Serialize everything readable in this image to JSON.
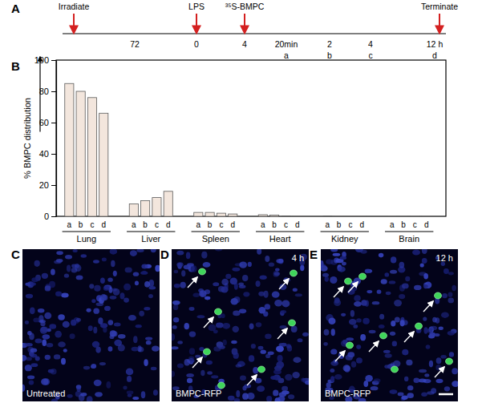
{
  "chart_data": {
    "type": "bar",
    "y_label": "% BMPC distribution",
    "categories": [
      "Lung",
      "Liver",
      "Spleen",
      "Heart",
      "Kidney",
      "Brain"
    ],
    "series": [
      {
        "name": "a",
        "color": "#f3e6dd",
        "values": [
          85,
          8,
          2.5,
          1,
          0.3,
          0.1
        ]
      },
      {
        "name": "b",
        "color": "#f3e6dd",
        "values": [
          80,
          10,
          2.5,
          0.8,
          0.2,
          0.1
        ]
      },
      {
        "name": "c",
        "color": "#f3e6dd",
        "values": [
          76,
          12,
          2,
          0.3,
          0.2,
          0.1
        ]
      },
      {
        "name": "d",
        "color": "#f3e6dd",
        "values": [
          66,
          16,
          1.5,
          0.2,
          0.2,
          0.1
        ]
      }
    ],
    "ylim": [
      0,
      100
    ],
    "yticks": [
      0,
      20,
      40,
      60,
      80,
      100
    ],
    "grid": false
  },
  "panel_b": {
    "letter": "B"
  },
  "timeline": {
    "letter": "A",
    "events": [
      "Irradiate",
      "LPS",
      "³⁵S-BMPC",
      "Terminate"
    ],
    "times": [
      {
        "text": "72"
      },
      {
        "text": "0"
      },
      {
        "text": "4"
      },
      {
        "text": "20min",
        "point": "a"
      },
      {
        "text": "2",
        "point": "b"
      },
      {
        "text": "4",
        "point": "c"
      },
      {
        "text": "12 h",
        "point": "d"
      }
    ]
  },
  "images": [
    {
      "letter": "C",
      "caption": "Untreated"
    },
    {
      "letter": "D",
      "caption": "BMPC-RFP",
      "time": "4 h"
    },
    {
      "letter": "E",
      "caption": "BMPC-RFP",
      "time": "12 h"
    }
  ]
}
